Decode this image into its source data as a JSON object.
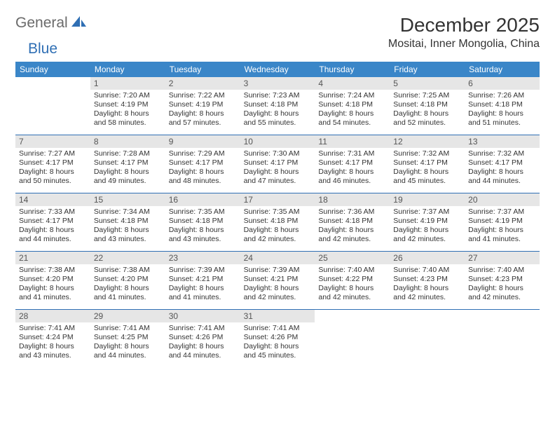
{
  "logo": {
    "text1": "General",
    "text2": "Blue"
  },
  "title": "December 2025",
  "location": "Mositai, Inner Mongolia, China",
  "colors": {
    "header_bg": "#3a86c8",
    "header_text": "#ffffff",
    "daynum_bg": "#e6e6e6",
    "rule": "#2f6fb4",
    "logo_gray": "#6a6a6a",
    "logo_blue": "#2f6fb4",
    "body_text": "#333333"
  },
  "day_names": [
    "Sunday",
    "Monday",
    "Tuesday",
    "Wednesday",
    "Thursday",
    "Friday",
    "Saturday"
  ],
  "weeks": [
    [
      {
        "n": null
      },
      {
        "n": 1,
        "sunrise": "7:20 AM",
        "sunset": "4:19 PM",
        "dayl": "8 hours and 58 minutes."
      },
      {
        "n": 2,
        "sunrise": "7:22 AM",
        "sunset": "4:19 PM",
        "dayl": "8 hours and 57 minutes."
      },
      {
        "n": 3,
        "sunrise": "7:23 AM",
        "sunset": "4:18 PM",
        "dayl": "8 hours and 55 minutes."
      },
      {
        "n": 4,
        "sunrise": "7:24 AM",
        "sunset": "4:18 PM",
        "dayl": "8 hours and 54 minutes."
      },
      {
        "n": 5,
        "sunrise": "7:25 AM",
        "sunset": "4:18 PM",
        "dayl": "8 hours and 52 minutes."
      },
      {
        "n": 6,
        "sunrise": "7:26 AM",
        "sunset": "4:18 PM",
        "dayl": "8 hours and 51 minutes."
      }
    ],
    [
      {
        "n": 7,
        "sunrise": "7:27 AM",
        "sunset": "4:17 PM",
        "dayl": "8 hours and 50 minutes."
      },
      {
        "n": 8,
        "sunrise": "7:28 AM",
        "sunset": "4:17 PM",
        "dayl": "8 hours and 49 minutes."
      },
      {
        "n": 9,
        "sunrise": "7:29 AM",
        "sunset": "4:17 PM",
        "dayl": "8 hours and 48 minutes."
      },
      {
        "n": 10,
        "sunrise": "7:30 AM",
        "sunset": "4:17 PM",
        "dayl": "8 hours and 47 minutes."
      },
      {
        "n": 11,
        "sunrise": "7:31 AM",
        "sunset": "4:17 PM",
        "dayl": "8 hours and 46 minutes."
      },
      {
        "n": 12,
        "sunrise": "7:32 AM",
        "sunset": "4:17 PM",
        "dayl": "8 hours and 45 minutes."
      },
      {
        "n": 13,
        "sunrise": "7:32 AM",
        "sunset": "4:17 PM",
        "dayl": "8 hours and 44 minutes."
      }
    ],
    [
      {
        "n": 14,
        "sunrise": "7:33 AM",
        "sunset": "4:17 PM",
        "dayl": "8 hours and 44 minutes."
      },
      {
        "n": 15,
        "sunrise": "7:34 AM",
        "sunset": "4:18 PM",
        "dayl": "8 hours and 43 minutes."
      },
      {
        "n": 16,
        "sunrise": "7:35 AM",
        "sunset": "4:18 PM",
        "dayl": "8 hours and 43 minutes."
      },
      {
        "n": 17,
        "sunrise": "7:35 AM",
        "sunset": "4:18 PM",
        "dayl": "8 hours and 42 minutes."
      },
      {
        "n": 18,
        "sunrise": "7:36 AM",
        "sunset": "4:18 PM",
        "dayl": "8 hours and 42 minutes."
      },
      {
        "n": 19,
        "sunrise": "7:37 AM",
        "sunset": "4:19 PM",
        "dayl": "8 hours and 42 minutes."
      },
      {
        "n": 20,
        "sunrise": "7:37 AM",
        "sunset": "4:19 PM",
        "dayl": "8 hours and 41 minutes."
      }
    ],
    [
      {
        "n": 21,
        "sunrise": "7:38 AM",
        "sunset": "4:20 PM",
        "dayl": "8 hours and 41 minutes."
      },
      {
        "n": 22,
        "sunrise": "7:38 AM",
        "sunset": "4:20 PM",
        "dayl": "8 hours and 41 minutes."
      },
      {
        "n": 23,
        "sunrise": "7:39 AM",
        "sunset": "4:21 PM",
        "dayl": "8 hours and 41 minutes."
      },
      {
        "n": 24,
        "sunrise": "7:39 AM",
        "sunset": "4:21 PM",
        "dayl": "8 hours and 42 minutes."
      },
      {
        "n": 25,
        "sunrise": "7:40 AM",
        "sunset": "4:22 PM",
        "dayl": "8 hours and 42 minutes."
      },
      {
        "n": 26,
        "sunrise": "7:40 AM",
        "sunset": "4:23 PM",
        "dayl": "8 hours and 42 minutes."
      },
      {
        "n": 27,
        "sunrise": "7:40 AM",
        "sunset": "4:23 PM",
        "dayl": "8 hours and 42 minutes."
      }
    ],
    [
      {
        "n": 28,
        "sunrise": "7:41 AM",
        "sunset": "4:24 PM",
        "dayl": "8 hours and 43 minutes."
      },
      {
        "n": 29,
        "sunrise": "7:41 AM",
        "sunset": "4:25 PM",
        "dayl": "8 hours and 44 minutes."
      },
      {
        "n": 30,
        "sunrise": "7:41 AM",
        "sunset": "4:26 PM",
        "dayl": "8 hours and 44 minutes."
      },
      {
        "n": 31,
        "sunrise": "7:41 AM",
        "sunset": "4:26 PM",
        "dayl": "8 hours and 45 minutes."
      },
      {
        "n": null
      },
      {
        "n": null
      },
      {
        "n": null
      }
    ]
  ],
  "labels": {
    "sunrise": "Sunrise:",
    "sunset": "Sunset:",
    "daylight": "Daylight:"
  }
}
